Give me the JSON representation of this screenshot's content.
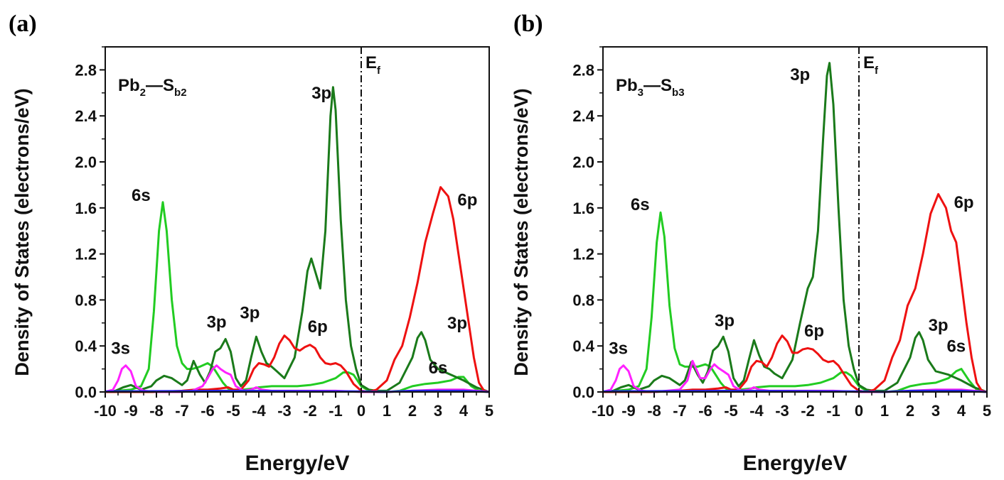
{
  "chart_data": [
    {
      "type": "line",
      "panel_label": "(a)",
      "title_main": "Pb",
      "title_sub1": "2",
      "title_dash": "—S",
      "title_sub2": "b2",
      "xlabel": "Energy/eV",
      "ylabel": "Density of States (electrons/eV)",
      "xlim": [
        -10,
        5
      ],
      "ylim": [
        0,
        3.0
      ],
      "xticks": [
        -10,
        -9,
        -8,
        -7,
        -6,
        -5,
        -4,
        -3,
        -2,
        -1,
        0,
        1,
        2,
        3,
        4,
        5
      ],
      "yticks": [
        0.0,
        0.4,
        0.8,
        1.2,
        1.6,
        2.0,
        2.4,
        2.8
      ],
      "fermi_level": 0,
      "fermi_label": "E",
      "fermi_sub": "f",
      "series": [
        {
          "color": "#22cc22",
          "x": [
            -10,
            -9.5,
            -9,
            -8.6,
            -8.3,
            -8.1,
            -7.9,
            -7.75,
            -7.6,
            -7.4,
            -7.2,
            -7,
            -6.8,
            -6.6,
            -6.3,
            -6.0,
            -5.8,
            -5.6,
            -5.4,
            -5.2,
            -5.0,
            -4.6,
            -4.2,
            -4.0,
            -3.5,
            -3,
            -2.5,
            -2,
            -1.5,
            -1,
            -0.7,
            -0.5,
            -0.3,
            0,
            0.3,
            0.5,
            1,
            1.5,
            2,
            2.5,
            3,
            3.5,
            3.8,
            4,
            4.3,
            4.6,
            5
          ],
          "y": [
            0,
            0.01,
            0.02,
            0.05,
            0.2,
            0.7,
            1.4,
            1.65,
            1.4,
            0.8,
            0.4,
            0.25,
            0.2,
            0.2,
            0.22,
            0.25,
            0.22,
            0.15,
            0.08,
            0.03,
            0.01,
            0.02,
            0.03,
            0.04,
            0.05,
            0.05,
            0.05,
            0.06,
            0.08,
            0.12,
            0.17,
            0.17,
            0.15,
            0.05,
            0.01,
            0,
            0,
            0.01,
            0.05,
            0.07,
            0.08,
            0.1,
            0.13,
            0.13,
            0.05,
            0.01,
            0
          ]
        },
        {
          "color": "#1a7a1a",
          "x": [
            -10,
            -9.6,
            -9.3,
            -9,
            -8.6,
            -8.2,
            -8,
            -7.7,
            -7.4,
            -7,
            -6.8,
            -6.55,
            -6.3,
            -6.1,
            -5.9,
            -5.7,
            -5.5,
            -5.3,
            -5.1,
            -4.9,
            -4.7,
            -4.5,
            -4.3,
            -4.1,
            -3.9,
            -3.7,
            -3.5,
            -3.3,
            -3,
            -2.6,
            -2.3,
            -2.1,
            -1.95,
            -1.8,
            -1.6,
            -1.4,
            -1.2,
            -1.1,
            -1.0,
            -0.8,
            -0.6,
            -0.4,
            -0.2,
            0,
            0.3,
            0.6,
            1,
            1.5,
            2,
            2.2,
            2.35,
            2.5,
            2.7,
            3,
            3.5,
            4,
            4.5,
            5
          ],
          "y": [
            0,
            0.01,
            0.04,
            0.06,
            0.02,
            0.05,
            0.1,
            0.14,
            0.12,
            0.06,
            0.1,
            0.27,
            0.15,
            0.08,
            0.18,
            0.35,
            0.38,
            0.46,
            0.35,
            0.12,
            0.05,
            0.1,
            0.3,
            0.48,
            0.35,
            0.25,
            0.22,
            0.18,
            0.12,
            0.3,
            0.7,
            1.05,
            1.16,
            1.05,
            0.9,
            1.4,
            2.4,
            2.65,
            2.45,
            1.5,
            0.8,
            0.4,
            0.2,
            0.06,
            0.02,
            0.01,
            0.01,
            0.08,
            0.3,
            0.47,
            0.52,
            0.45,
            0.28,
            0.2,
            0.15,
            0.1,
            0.04,
            0
          ]
        },
        {
          "color": "#ee1111",
          "x": [
            -10,
            -8,
            -7,
            -6.5,
            -6,
            -5.5,
            -5.2,
            -5,
            -4.7,
            -4.4,
            -4.2,
            -4.0,
            -3.8,
            -3.6,
            -3.4,
            -3.2,
            -3.0,
            -2.8,
            -2.6,
            -2.4,
            -2.2,
            -2.0,
            -1.8,
            -1.6,
            -1.4,
            -1.2,
            -1.0,
            -0.8,
            -0.6,
            -0.3,
            0,
            0.3,
            0.6,
            1,
            1.3,
            1.6,
            1.9,
            2.2,
            2.5,
            2.8,
            3.1,
            3.4,
            3.6,
            3.8,
            4.0,
            4.2,
            4.4,
            4.6,
            4.8,
            5
          ],
          "y": [
            0,
            0,
            0.01,
            0.02,
            0.02,
            0.03,
            0.04,
            0.02,
            0.02,
            0.1,
            0.2,
            0.25,
            0.24,
            0.22,
            0.3,
            0.42,
            0.49,
            0.45,
            0.38,
            0.36,
            0.39,
            0.41,
            0.38,
            0.3,
            0.25,
            0.24,
            0.25,
            0.23,
            0.18,
            0.07,
            0.01,
            0,
            0.02,
            0.1,
            0.28,
            0.4,
            0.65,
            0.95,
            1.3,
            1.55,
            1.78,
            1.7,
            1.5,
            1.2,
            0.9,
            0.6,
            0.3,
            0.08,
            0.01,
            0
          ]
        },
        {
          "color": "#ff22ff",
          "x": [
            -10,
            -9.7,
            -9.5,
            -9.35,
            -9.2,
            -9.0,
            -8.8,
            -8.5,
            -8,
            -7,
            -6.6,
            -6.2,
            -6.0,
            -5.8,
            -5.65,
            -5.5,
            -5.3,
            -5.1,
            -4.9,
            -4.6,
            -4.3,
            -4.1,
            -3.9,
            -3.5,
            -3,
            -2,
            -1,
            0,
            1,
            2,
            3,
            4,
            5
          ],
          "y": [
            0,
            0.02,
            0.1,
            0.2,
            0.23,
            0.18,
            0.05,
            0.01,
            0,
            0,
            0.01,
            0.05,
            0.12,
            0.2,
            0.23,
            0.2,
            0.17,
            0.15,
            0.05,
            0.01,
            0.02,
            0.04,
            0.02,
            0.01,
            0.01,
            0.01,
            0.01,
            0,
            0,
            0.01,
            0.02,
            0.02,
            0
          ]
        },
        {
          "color": "#2222dd",
          "x": [
            -10,
            -5,
            0,
            1,
            2,
            3,
            4,
            5
          ],
          "y": [
            0.005,
            0.01,
            0.005,
            0,
            0.01,
            0.01,
            0.01,
            0
          ]
        }
      ],
      "annotations": [
        {
          "text": "3s",
          "x": -9.4,
          "y": 0.33
        },
        {
          "text": "6s",
          "x": -8.6,
          "y": 1.66
        },
        {
          "text": "3p",
          "x": -5.65,
          "y": 0.56
        },
        {
          "text": "3p",
          "x": -4.35,
          "y": 0.64
        },
        {
          "text": "6p",
          "x": -1.7,
          "y": 0.52
        },
        {
          "text": "3p",
          "x": -1.55,
          "y": 2.55
        },
        {
          "text": "6p",
          "x": 4.15,
          "y": 1.62
        },
        {
          "text": "3p",
          "x": 3.75,
          "y": 0.55
        },
        {
          "text": "6s",
          "x": 3.0,
          "y": 0.16
        }
      ]
    },
    {
      "type": "line",
      "panel_label": "(b)",
      "title_main": "Pb",
      "title_sub1": "3",
      "title_dash": "—S",
      "title_sub2": "b3",
      "xlabel": "Energy/eV",
      "ylabel": "Density of States (electrons/eV)",
      "xlim": [
        -10,
        5
      ],
      "ylim": [
        0,
        3.0
      ],
      "xticks": [
        -10,
        -9,
        -8,
        -7,
        -6,
        -5,
        -4,
        -3,
        -2,
        -1,
        0,
        1,
        2,
        3,
        4,
        5
      ],
      "yticks": [
        0.0,
        0.4,
        0.8,
        1.2,
        1.6,
        2.0,
        2.4,
        2.8
      ],
      "fermi_level": 0,
      "fermi_label": "E",
      "fermi_sub": "f",
      "series": [
        {
          "color": "#22cc22",
          "x": [
            -10,
            -9.5,
            -9,
            -8.6,
            -8.3,
            -8.1,
            -7.9,
            -7.75,
            -7.6,
            -7.4,
            -7.2,
            -7,
            -6.8,
            -6.6,
            -6.3,
            -6.0,
            -5.8,
            -5.6,
            -5.4,
            -5.2,
            -5.0,
            -4.6,
            -4.2,
            -4.0,
            -3.5,
            -3,
            -2.5,
            -2,
            -1.5,
            -1,
            -0.7,
            -0.5,
            -0.3,
            0,
            0.3,
            0.5,
            1,
            1.5,
            2,
            2.5,
            3,
            3.5,
            3.8,
            4,
            4.3,
            4.6,
            5
          ],
          "y": [
            0,
            0.01,
            0.02,
            0.05,
            0.2,
            0.65,
            1.3,
            1.56,
            1.35,
            0.75,
            0.38,
            0.24,
            0.22,
            0.22,
            0.22,
            0.24,
            0.22,
            0.15,
            0.08,
            0.03,
            0.01,
            0.02,
            0.03,
            0.04,
            0.05,
            0.05,
            0.05,
            0.06,
            0.08,
            0.12,
            0.17,
            0.17,
            0.14,
            0.05,
            0.01,
            0,
            0,
            0.01,
            0.05,
            0.07,
            0.08,
            0.12,
            0.18,
            0.2,
            0.1,
            0.02,
            0
          ]
        },
        {
          "color": "#1a7a1a",
          "x": [
            -10,
            -9.6,
            -9.3,
            -9,
            -8.6,
            -8.2,
            -8,
            -7.7,
            -7.4,
            -7,
            -6.8,
            -6.55,
            -6.3,
            -6.1,
            -5.9,
            -5.7,
            -5.5,
            -5.3,
            -5.1,
            -4.9,
            -4.7,
            -4.5,
            -4.3,
            -4.1,
            -3.9,
            -3.7,
            -3.5,
            -3.3,
            -3,
            -2.6,
            -2.3,
            -2.0,
            -1.8,
            -1.6,
            -1.4,
            -1.25,
            -1.15,
            -1.0,
            -0.8,
            -0.6,
            -0.4,
            -0.2,
            0,
            0.3,
            0.6,
            1,
            1.5,
            2,
            2.2,
            2.35,
            2.5,
            2.7,
            3,
            3.5,
            4,
            4.5,
            5
          ],
          "y": [
            0,
            0.01,
            0.04,
            0.06,
            0.02,
            0.05,
            0.1,
            0.14,
            0.12,
            0.06,
            0.1,
            0.26,
            0.15,
            0.08,
            0.18,
            0.36,
            0.4,
            0.48,
            0.35,
            0.12,
            0.05,
            0.1,
            0.28,
            0.45,
            0.32,
            0.22,
            0.2,
            0.16,
            0.12,
            0.28,
            0.6,
            0.9,
            1.0,
            1.4,
            2.2,
            2.75,
            2.86,
            2.5,
            1.6,
            0.8,
            0.4,
            0.2,
            0.06,
            0.02,
            0.01,
            0.01,
            0.08,
            0.3,
            0.47,
            0.52,
            0.45,
            0.28,
            0.18,
            0.15,
            0.1,
            0.04,
            0
          ]
        },
        {
          "color": "#ee1111",
          "x": [
            -10,
            -8,
            -7,
            -6.5,
            -6,
            -5.5,
            -5.2,
            -5,
            -4.7,
            -4.4,
            -4.2,
            -4.0,
            -3.8,
            -3.6,
            -3.4,
            -3.2,
            -3.0,
            -2.8,
            -2.6,
            -2.4,
            -2.2,
            -2.0,
            -1.8,
            -1.6,
            -1.4,
            -1.2,
            -1.0,
            -0.8,
            -0.6,
            -0.3,
            0,
            0.3,
            0.6,
            1,
            1.3,
            1.6,
            1.9,
            2.2,
            2.5,
            2.8,
            3.1,
            3.4,
            3.6,
            3.8,
            4.0,
            4.2,
            4.4,
            4.6,
            4.8,
            5
          ],
          "y": [
            0,
            0,
            0.01,
            0.02,
            0.02,
            0.03,
            0.04,
            0.02,
            0.02,
            0.1,
            0.22,
            0.27,
            0.26,
            0.22,
            0.3,
            0.42,
            0.49,
            0.44,
            0.34,
            0.34,
            0.37,
            0.38,
            0.37,
            0.33,
            0.28,
            0.26,
            0.27,
            0.23,
            0.16,
            0.06,
            0.01,
            0,
            0.02,
            0.1,
            0.3,
            0.45,
            0.75,
            0.9,
            1.2,
            1.55,
            1.72,
            1.6,
            1.4,
            1.3,
            0.95,
            0.6,
            0.3,
            0.08,
            0.01,
            0
          ]
        },
        {
          "color": "#ff22ff",
          "x": [
            -10,
            -9.7,
            -9.5,
            -9.35,
            -9.2,
            -9.0,
            -8.8,
            -8.5,
            -8,
            -7,
            -6.7,
            -6.5,
            -6.2,
            -6.0,
            -5.8,
            -5.65,
            -5.5,
            -5.3,
            -5.1,
            -4.9,
            -4.6,
            -4.3,
            -4.1,
            -3.9,
            -3.5,
            -3,
            -2,
            -1,
            0,
            1,
            2,
            3,
            4,
            5
          ],
          "y": [
            0,
            0.02,
            0.1,
            0.2,
            0.23,
            0.18,
            0.05,
            0.01,
            0,
            0.02,
            0.1,
            0.27,
            0.12,
            0.12,
            0.2,
            0.24,
            0.21,
            0.18,
            0.15,
            0.05,
            0.01,
            0.02,
            0.04,
            0.02,
            0.01,
            0.01,
            0.01,
            0.01,
            0,
            0,
            0.01,
            0.02,
            0.02,
            0
          ]
        },
        {
          "color": "#2222dd",
          "x": [
            -10,
            -5,
            0,
            1,
            2,
            3,
            4,
            5
          ],
          "y": [
            0.005,
            0.01,
            0.005,
            0,
            0.01,
            0.01,
            0.01,
            0
          ]
        }
      ],
      "annotations": [
        {
          "text": "3s",
          "x": -9.4,
          "y": 0.33
        },
        {
          "text": "6s",
          "x": -8.55,
          "y": 1.58
        },
        {
          "text": "3p",
          "x": -5.25,
          "y": 0.57
        },
        {
          "text": "6p",
          "x": -1.75,
          "y": 0.48
        },
        {
          "text": "3p",
          "x": -2.3,
          "y": 2.71
        },
        {
          "text": "6p",
          "x": 4.1,
          "y": 1.6
        },
        {
          "text": "3p",
          "x": 3.1,
          "y": 0.53
        },
        {
          "text": "6s",
          "x": 3.8,
          "y": 0.35
        }
      ]
    }
  ]
}
